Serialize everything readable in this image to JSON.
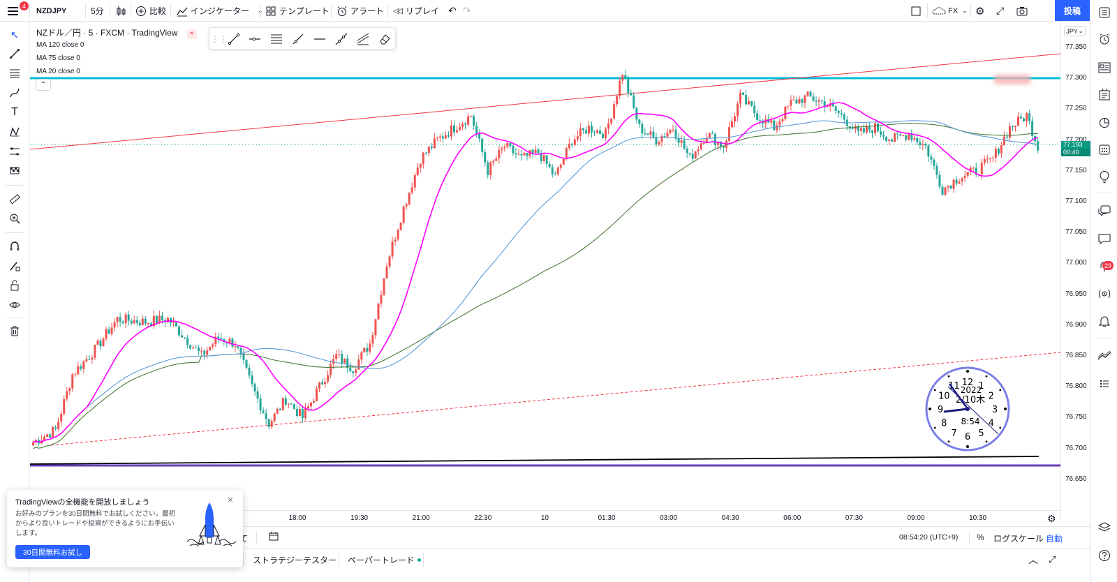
{
  "topbar": {
    "menu_badge": "4",
    "symbol": "NZDJPY",
    "interval": "5分",
    "compare": "比較",
    "indicators": "インジケーター",
    "templates": "テンプレート",
    "alert": "アラート",
    "replay": "リプレイ",
    "fx_label": "FX",
    "post": "投稿"
  },
  "legend": {
    "title": "NZドル／円 · 5 · FXCM · TradingView",
    "ma": [
      {
        "label": "MA 120 close 0"
      },
      {
        "label": "MA 75 close 0"
      },
      {
        "label": "MA 20 close 0"
      }
    ]
  },
  "price_scale": {
    "currency": "JPY",
    "ticks": [
      "77.350",
      "77.300",
      "77.250",
      "77.200",
      "77.150",
      "77.100",
      "77.050",
      "77.000",
      "76.950",
      "76.900",
      "76.850",
      "76.800",
      "76.750",
      "76.700",
      "76.650"
    ],
    "current_price": "77.193",
    "countdown": "00:40"
  },
  "time_scale": {
    "ticks": [
      "18:00",
      "19:30",
      "21:00",
      "22:30",
      "10",
      "01:30",
      "03:00",
      "04:30",
      "06:00",
      "07:30",
      "09:00",
      "10:30"
    ]
  },
  "clock": {
    "numbers": [
      "12",
      "1",
      "2",
      "3",
      "4",
      "5",
      "6",
      "7",
      "8",
      "9",
      "10",
      "11"
    ],
    "date": "2022",
    "day": "2/10木",
    "time": "8:54"
  },
  "status": {
    "time": "08:54:20 (UTC+9)",
    "percent": "%",
    "log": "ログスケール",
    "auto": "自動",
    "partial": "て"
  },
  "bottom_tabs": {
    "strategy": "ストラテジーテスター",
    "paper": "ペーパートレード"
  },
  "promo": {
    "title": "TradingViewの全機能を開放しましょう",
    "body": "お好みのプランを30日間無料でお試しください。最初からより良いトレードや投資ができるようにお手伝いします。",
    "button": "30日間無料お試し"
  },
  "right_badge": "29",
  "colors": {
    "up": "#ef5350",
    "down": "#26a69a",
    "ma20": "#ff00ff",
    "ma75": "#5b9bd5",
    "ma120": "#4a7a3c",
    "accent": "#2962ff",
    "hline_cyan": "#00bcd4",
    "hline_purple": "#673ab7"
  }
}
